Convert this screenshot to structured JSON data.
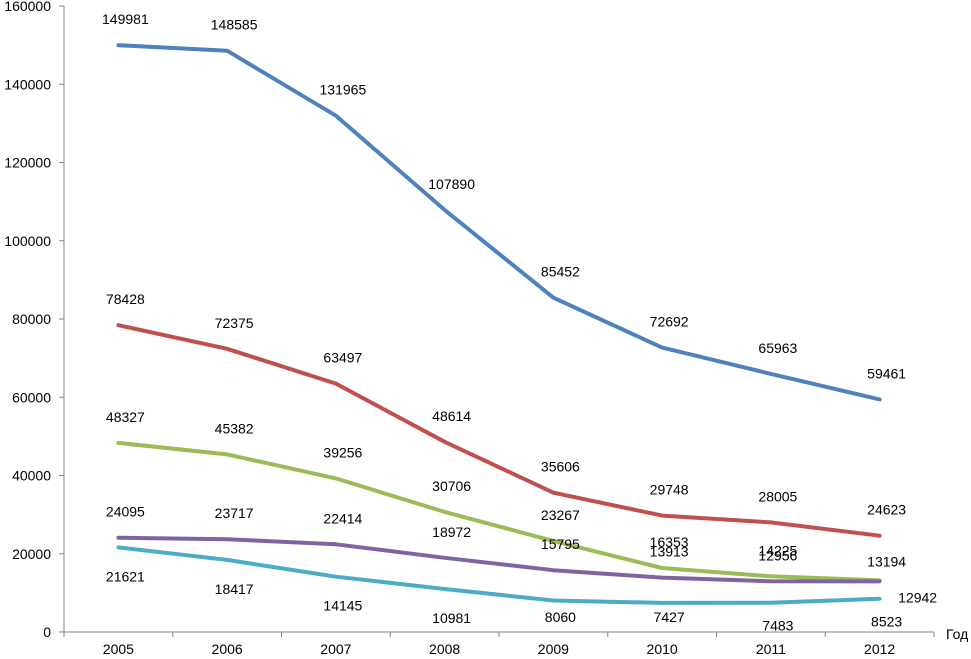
{
  "chart_data": {
    "type": "line",
    "title": "",
    "xlabel": "Год",
    "ylabel": "",
    "ylim": [
      0,
      160000
    ],
    "y_ticks": [
      "0",
      "20000",
      "40000",
      "60000",
      "80000",
      "100000",
      "120000",
      "140000",
      "160000"
    ],
    "categories": [
      "2005",
      "2006",
      "2007",
      "2008",
      "2009",
      "2010",
      "2011",
      "2012"
    ],
    "grid": false,
    "legend": "none",
    "series": [
      {
        "color": "#4f81bd",
        "values": [
          149981,
          148585,
          131965,
          107890,
          85452,
          72692,
          65963,
          59461
        ]
      },
      {
        "color": "#c0504d",
        "values": [
          78428,
          72375,
          63497,
          48614,
          35606,
          29748,
          28005,
          24623
        ]
      },
      {
        "color": "#9bbb59",
        "values": [
          48327,
          45382,
          39256,
          30706,
          23267,
          16353,
          14225,
          13194
        ]
      },
      {
        "color": "#8064a2",
        "values": [
          24095,
          23717,
          22414,
          18972,
          15795,
          13913,
          12956,
          12942
        ]
      },
      {
        "color": "#4bacc6",
        "values": [
          21621,
          18417,
          14145,
          10981,
          8060,
          7427,
          7483,
          8523
        ]
      }
    ],
    "data_labels": [
      [
        "149981",
        "148585",
        "131965",
        "107890",
        "85452",
        "72692",
        "65963",
        "59461"
      ],
      [
        "78428",
        "72375",
        "63497",
        "48614",
        "35606",
        "29748",
        "28005",
        "24623"
      ],
      [
        "48327",
        "45382",
        "39256",
        "30706",
        "23267",
        "16353",
        "14225",
        "13194"
      ],
      [
        "24095",
        "23717",
        "22414",
        "18972",
        "15795",
        "13913",
        "12956",
        "12942"
      ],
      [
        "21621",
        "18417",
        "14145",
        "10981",
        "8060",
        "7427",
        "7483",
        "8523"
      ]
    ]
  }
}
